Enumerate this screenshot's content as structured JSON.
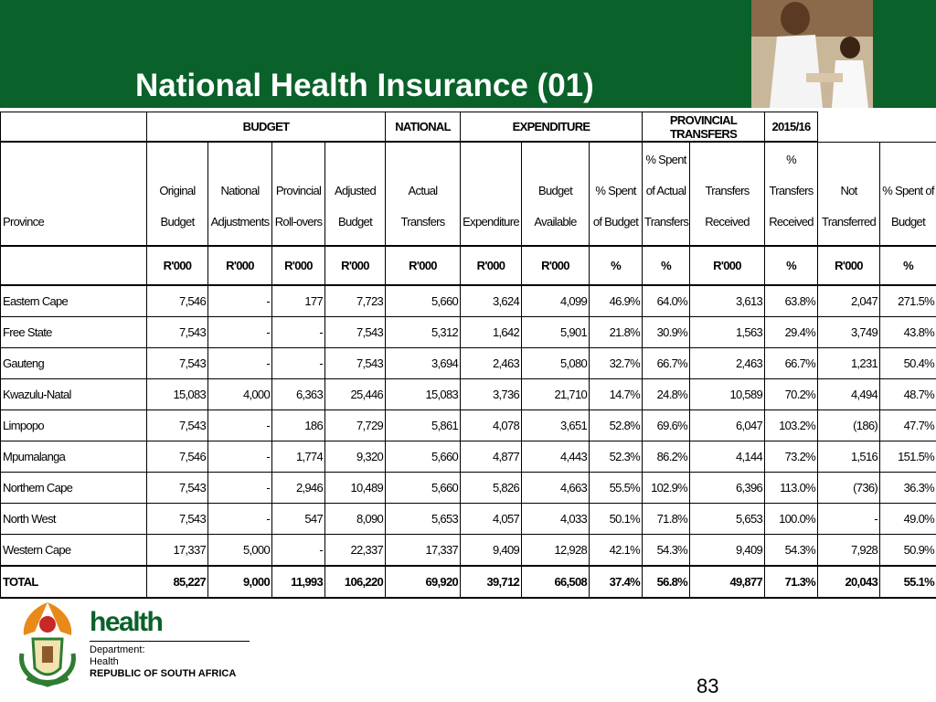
{
  "header": {
    "title": "National Health Insurance (01)"
  },
  "table": {
    "groups": [
      "BUDGET",
      "NATIONAL",
      "EXPENDITURE",
      "PROVINCIAL TRANSFERS",
      "2015/16"
    ],
    "columns": [
      "Province",
      "Original Budget",
      "National Adjustments",
      "Provincial Roll-overs",
      "Adjusted Budget",
      "Actual Transfers",
      "Expenditure",
      "Budget Available",
      "% Spent of Budget",
      "% Spent of Actual Transfers",
      "Transfers Received",
      "% Transfers Received",
      "Not Transferred",
      "% Spent of Budget"
    ],
    "units": [
      "R'000",
      "R'000",
      "R'000",
      "R'000",
      "R'000",
      "R'000",
      "R'000",
      "%",
      "%",
      "R'000",
      "%",
      "R'000",
      "%"
    ],
    "rows": [
      [
        "Eastern Cape",
        "7,546",
        "-",
        "177",
        "7,723",
        "5,660",
        "3,624",
        "4,099",
        "46.9%",
        "64.0%",
        "3,613",
        "63.8%",
        "2,047",
        "271.5%"
      ],
      [
        "Free State",
        "7,543",
        "-",
        "-",
        "7,543",
        "5,312",
        "1,642",
        "5,901",
        "21.8%",
        "30.9%",
        "1,563",
        "29.4%",
        "3,749",
        "43.8%"
      ],
      [
        "Gauteng",
        "7,543",
        "-",
        "-",
        "7,543",
        "3,694",
        "2,463",
        "5,080",
        "32.7%",
        "66.7%",
        "2,463",
        "66.7%",
        "1,231",
        "50.4%"
      ],
      [
        "Kwazulu-Natal",
        "15,083",
        "4,000",
        "6,363",
        "25,446",
        "15,083",
        "3,736",
        "21,710",
        "14.7%",
        "24.8%",
        "10,589",
        "70.2%",
        "4,494",
        "48.7%"
      ],
      [
        "Limpopo",
        "7,543",
        "-",
        "186",
        "7,729",
        "5,861",
        "4,078",
        "3,651",
        "52.8%",
        "69.6%",
        "6,047",
        "103.2%",
        "(186)",
        "47.7%"
      ],
      [
        "Mpumalanga",
        "7,546",
        "-",
        "1,774",
        "9,320",
        "5,660",
        "4,877",
        "4,443",
        "52.3%",
        "86.2%",
        "4,144",
        "73.2%",
        "1,516",
        "151.5%"
      ],
      [
        "Northern Cape",
        "7,543",
        "-",
        "2,946",
        "10,489",
        "5,660",
        "5,826",
        "4,663",
        "55.5%",
        "102.9%",
        "6,396",
        "113.0%",
        "(736)",
        "36.3%"
      ],
      [
        "North West",
        "7,543",
        "-",
        "547",
        "8,090",
        "5,653",
        "4,057",
        "4,033",
        "50.1%",
        "71.8%",
        "5,653",
        "100.0%",
        "-",
        "49.0%"
      ],
      [
        "Western Cape",
        "17,337",
        "5,000",
        "-",
        "22,337",
        "17,337",
        "9,409",
        "12,928",
        "42.1%",
        "54.3%",
        "9,409",
        "54.3%",
        "7,928",
        "50.9%"
      ],
      [
        "TOTAL",
        "85,227",
        "9,000",
        "11,993",
        "106,220",
        "69,920",
        "39,712",
        "66,508",
        "37.4%",
        "56.8%",
        "49,877",
        "71.3%",
        "20,043",
        "55.1%"
      ]
    ]
  },
  "footer": {
    "brand": "health",
    "department": "Department:",
    "dept_name": "Health",
    "country": "REPUBLIC OF SOUTH AFRICA",
    "page_number": "83"
  }
}
